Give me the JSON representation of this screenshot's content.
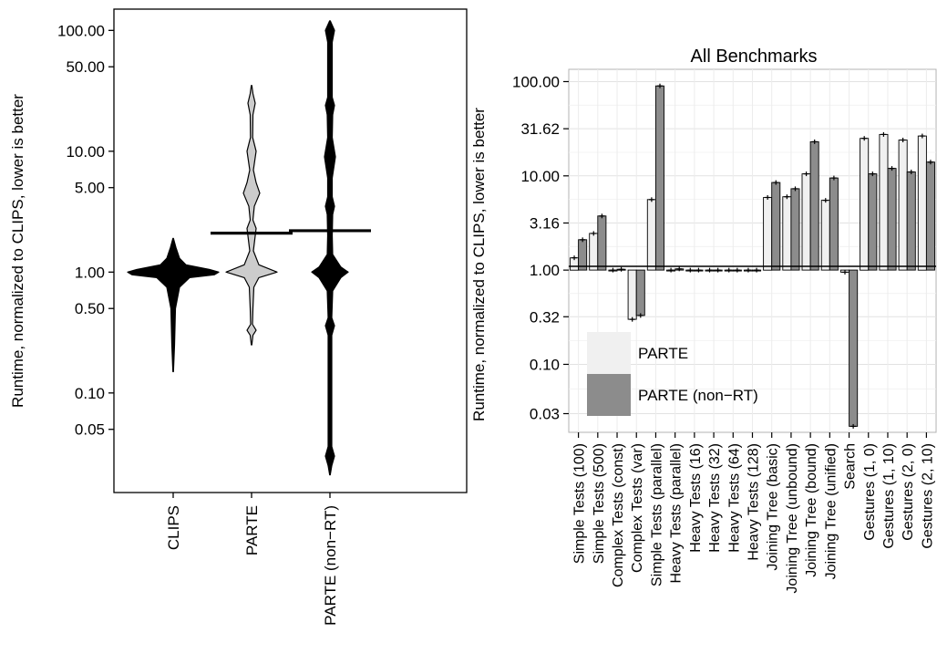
{
  "chart_data": [
    {
      "type": "violin",
      "ylabel": "Runtime, normalized to CLIPS, lower is better",
      "y_scale": "log10",
      "ylim": [
        0.015,
        150
      ],
      "y_ticks": [
        "100.00",
        "50.00",
        "10.00",
        "5.00",
        "1.00",
        "0.50",
        "0.10",
        "0.05"
      ],
      "y_tick_values": [
        100,
        50,
        10,
        5,
        1,
        0.5,
        0.1,
        0.05
      ],
      "categories": [
        "CLIPS",
        "PARTE",
        "PARTE (non−RT)"
      ],
      "series": [
        {
          "category": "CLIPS",
          "fill": "#000000",
          "min": 0.15,
          "max": 1.9,
          "mean": 1.0,
          "profile": [
            [
              0.15,
              0.3
            ],
            [
              0.25,
              1.5
            ],
            [
              0.5,
              2.5
            ],
            [
              0.75,
              7
            ],
            [
              0.9,
              18
            ],
            [
              0.95,
              45
            ],
            [
              1.0,
              50
            ],
            [
              1.05,
              40
            ],
            [
              1.15,
              14
            ],
            [
              1.3,
              7
            ],
            [
              1.6,
              3
            ],
            [
              1.9,
              0.3
            ]
          ]
        },
        {
          "category": "PARTE",
          "fill": "#cccccc",
          "min": 0.25,
          "max": 35,
          "mean": 2.1,
          "profile": [
            [
              0.25,
              0.3
            ],
            [
              0.3,
              1.5
            ],
            [
              0.33,
              5
            ],
            [
              0.37,
              1
            ],
            [
              0.5,
              1.5
            ],
            [
              0.75,
              2.5
            ],
            [
              0.9,
              8
            ],
            [
              1.0,
              28
            ],
            [
              1.15,
              8
            ],
            [
              1.5,
              2
            ],
            [
              2.3,
              5
            ],
            [
              2.7,
              1.5
            ],
            [
              3.5,
              3
            ],
            [
              4.5,
              9
            ],
            [
              5.5,
              5
            ],
            [
              7,
              2
            ],
            [
              10,
              5
            ],
            [
              13,
              1.2
            ],
            [
              20,
              1.5
            ],
            [
              25,
              4
            ],
            [
              30,
              1.5
            ],
            [
              35,
              0.3
            ]
          ]
        },
        {
          "category": "PARTE (non−RT)",
          "fill": "#000000",
          "min": 0.021,
          "max": 120,
          "mean": 2.2,
          "profile": [
            [
              0.021,
              0.3
            ],
            [
              0.025,
              2
            ],
            [
              0.03,
              5
            ],
            [
              0.036,
              2
            ],
            [
              0.05,
              2
            ],
            [
              0.1,
              2
            ],
            [
              0.3,
              2
            ],
            [
              0.36,
              5
            ],
            [
              0.42,
              2
            ],
            [
              0.7,
              3
            ],
            [
              0.9,
              12
            ],
            [
              1.0,
              20
            ],
            [
              1.1,
              12
            ],
            [
              1.4,
              3
            ],
            [
              2,
              2.5
            ],
            [
              3,
              3
            ],
            [
              3.5,
              5
            ],
            [
              4.2,
              2.5
            ],
            [
              6,
              2.5
            ],
            [
              8,
              5
            ],
            [
              9,
              6
            ],
            [
              10,
              5
            ],
            [
              13,
              2.5
            ],
            [
              20,
              3
            ],
            [
              24,
              5
            ],
            [
              28,
              2.5
            ],
            [
              50,
              2.5
            ],
            [
              80,
              2.5
            ],
            [
              100,
              5
            ],
            [
              120,
              0.3
            ]
          ]
        }
      ]
    },
    {
      "type": "bar",
      "title": "All Benchmarks",
      "ylabel": "Runtime, normalized to CLIPS, lower is better",
      "y_scale": "log10",
      "baseline": 1.0,
      "ylim": [
        0.019,
        135
      ],
      "y_ticks": [
        "100.00",
        "31.62",
        "10.00",
        "3.16",
        "1.00",
        "0.32",
        "0.10",
        "0.03"
      ],
      "y_tick_values": [
        100,
        31.62,
        10,
        3.16,
        1,
        0.32,
        0.1,
        0.03
      ],
      "grid": true,
      "categories": [
        "Simple Tests (100)",
        "Simple Tests (500)",
        "Complex Tests (const)",
        "Complex Tests (var)",
        "Simple Tests (parallel)",
        "Heavy Tests (parallel)",
        "Heavy Tests (16)",
        "Heavy Tests (32)",
        "Heavy Tests (64)",
        "Heavy Tests (128)",
        "Joining Tree (basic)",
        "Joining Tree (unbound)",
        "Joining Tree (bound)",
        "Joining Tree (unified)",
        "Search",
        "Gestures (1, 0)",
        "Gestures (1, 10)",
        "Gestures (2, 0)",
        "Gestures (2, 10)"
      ],
      "series": [
        {
          "name": "PARTE",
          "color": "#f0f0f0",
          "values": [
            1.35,
            2.45,
            1.0,
            0.3,
            5.6,
            1.0,
            1.0,
            1.0,
            1.0,
            1.0,
            5.9,
            6.0,
            10.5,
            5.5,
            0.95,
            25,
            27.5,
            24,
            26.5
          ]
        },
        {
          "name": "PARTE (non−RT)",
          "color": "#8c8c8c",
          "values": [
            2.1,
            3.75,
            1.02,
            0.33,
            90,
            1.03,
            1.0,
            1.0,
            1.0,
            1.0,
            8.5,
            7.3,
            23,
            9.5,
            0.022,
            10.5,
            12,
            11,
            14
          ]
        }
      ],
      "legend": {
        "position": "bottom-left",
        "entries": [
          "PARTE",
          "PARTE (non−RT)"
        ]
      }
    }
  ]
}
